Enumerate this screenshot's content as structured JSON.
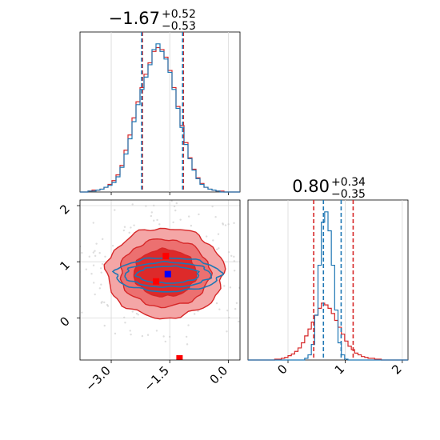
{
  "chart_data": [
    {
      "type": "histogram",
      "panel": "top-left",
      "title": {
        "main": "−1.67",
        "plus": "+0.52",
        "minus": "−0.53"
      },
      "x_range": [
        -3.8,
        0.3
      ],
      "x_ticks": [
        -3.0,
        -1.5,
        0.0
      ],
      "quantiles": {
        "red": [
          -2.2,
          -1.15
        ],
        "blue": [
          -2.22,
          -1.17
        ]
      },
      "series": [
        {
          "color": "#d62728",
          "counts": [
            0,
            0,
            1,
            2,
            2,
            3,
            5,
            8,
            12,
            18,
            28,
            44,
            60,
            78,
            95,
            110,
            124,
            136,
            148,
            152,
            150,
            142,
            128,
            110,
            90,
            70,
            52,
            36,
            24,
            15,
            9,
            5,
            3,
            2,
            1,
            1,
            0,
            0,
            0,
            0
          ]
        },
        {
          "color": "#1f77b4",
          "counts": [
            0,
            0,
            1,
            1,
            2,
            3,
            5,
            7,
            10,
            16,
            26,
            40,
            56,
            74,
            92,
            108,
            121,
            134,
            150,
            156,
            148,
            140,
            126,
            108,
            88,
            68,
            50,
            35,
            23,
            14,
            8,
            5,
            3,
            2,
            1,
            0,
            0,
            0,
            0,
            0
          ]
        }
      ]
    },
    {
      "type": "histogram",
      "panel": "bottom-right",
      "title": {
        "main": "0.80",
        "plus": "+0.34",
        "minus": "−0.35"
      },
      "x_range": [
        -0.7,
        2.1
      ],
      "x_ticks": [
        0,
        1,
        2
      ],
      "quantiles": {
        "red": [
          0.45,
          1.14
        ],
        "blue": [
          0.62,
          0.93
        ]
      },
      "series": [
        {
          "color": "#d62728",
          "counts": [
            0,
            0,
            0,
            0,
            0,
            0,
            0,
            0,
            1,
            1,
            2,
            3,
            5,
            7,
            10,
            14,
            20,
            28,
            36,
            44,
            52,
            60,
            66,
            64,
            60,
            54,
            46,
            38,
            30,
            22,
            16,
            12,
            8,
            6,
            4,
            3,
            2,
            2,
            1,
            1,
            0,
            0,
            0,
            0,
            0,
            0,
            0,
            0
          ]
        },
        {
          "color": "#1f77b4",
          "counts": [
            0,
            0,
            0,
            0,
            0,
            0,
            0,
            0,
            0,
            0,
            0,
            0,
            0,
            0,
            0,
            0,
            0,
            2,
            6,
            18,
            52,
            110,
            160,
            172,
            150,
            110,
            58,
            20,
            6,
            1,
            0,
            0,
            0,
            0,
            0,
            0,
            0,
            0,
            0,
            0,
            0,
            0,
            0,
            0,
            0,
            0,
            0,
            0
          ]
        }
      ]
    },
    {
      "type": "contour",
      "panel": "bottom-left",
      "x_range": [
        -3.8,
        0.3
      ],
      "y_range": [
        -0.75,
        2.1
      ],
      "x_ticks": [
        -3.0,
        -1.5,
        0.0
      ],
      "y_ticks": [
        0,
        1,
        2
      ],
      "red_center": [
        -1.62,
        0.8
      ],
      "red_radii": [
        [
          1.5,
          0.8
        ],
        [
          1.15,
          0.6
        ],
        [
          0.8,
          0.42
        ]
      ],
      "blue_center": [
        -1.55,
        0.77
      ],
      "blue_radii": [
        [
          1.35,
          0.3
        ],
        [
          1.1,
          0.22
        ],
        [
          0.8,
          0.15
        ]
      ],
      "markers": [
        {
          "color": "#ff0000",
          "x": -1.6,
          "y": 1.1
        },
        {
          "color": "#ff0000",
          "x": -1.85,
          "y": 0.65
        },
        {
          "color": "#0000ff",
          "x": -1.55,
          "y": 0.78
        },
        {
          "color": "#ff0000",
          "x": -1.25,
          "y": -0.72
        }
      ]
    }
  ]
}
